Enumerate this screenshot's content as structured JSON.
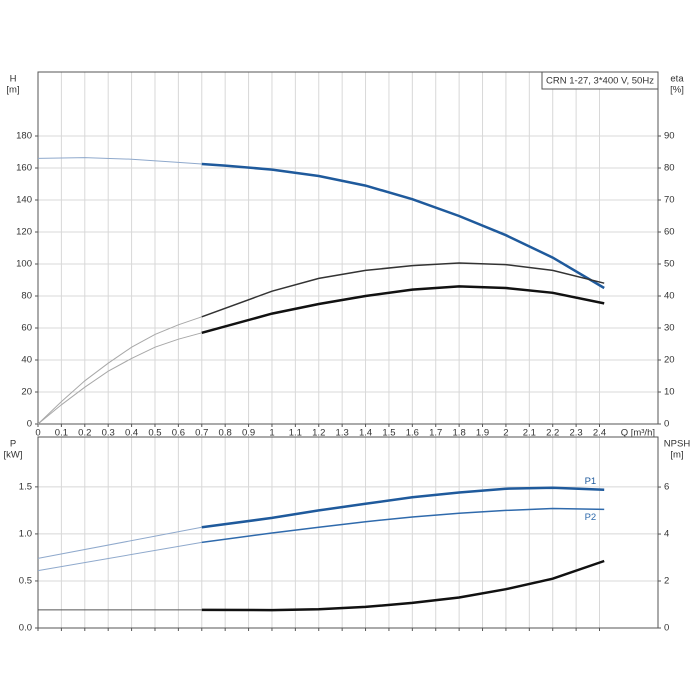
{
  "chart_data": [
    {
      "type": "line",
      "title": "CRN 1-27, 3*400 V, 50Hz",
      "ylabel": "H",
      "ylabel_unit": "[m]",
      "y2label": "eta",
      "y2label_unit": "[%]",
      "xlabel": "Q [m³/h]",
      "xlim": [
        0,
        2.65
      ],
      "xticks": [
        0,
        0.1,
        0.2,
        0.3,
        0.4,
        0.5,
        0.6,
        0.7,
        0.8,
        0.9,
        1.0,
        1.1,
        1.2,
        1.3,
        1.4,
        1.5,
        1.6,
        1.7,
        1.8,
        1.9,
        2.0,
        2.1,
        2.2,
        2.3,
        2.4
      ],
      "ylim": [
        0,
        220
      ],
      "yticks": [
        0,
        20,
        40,
        60,
        80,
        100,
        120,
        140,
        160,
        180
      ],
      "y2lim": [
        0,
        110
      ],
      "y2ticks": [
        0,
        10,
        20,
        30,
        40,
        50,
        60,
        70,
        80,
        90
      ],
      "grid": true,
      "series": [
        {
          "color": "#8fa9cc",
          "line_width": 1,
          "x": [
            0,
            0.2,
            0.4,
            0.6,
            0.7
          ],
          "values": [
            166,
            166.5,
            165.5,
            163.5,
            162.5
          ]
        },
        {
          "color": "#1f5a9c",
          "line_width": 2.5,
          "x": [
            0.7,
            0.8,
            1.0,
            1.2,
            1.4,
            1.6,
            1.8,
            2.0,
            2.2,
            2.42
          ],
          "values": [
            162.5,
            161.5,
            159,
            155,
            149,
            140.5,
            130,
            118,
            104,
            85
          ]
        },
        {
          "color": "#a8a8a8",
          "line_width": 1,
          "axis": "y2",
          "x": [
            0,
            0.1,
            0.2,
            0.3,
            0.4,
            0.5,
            0.6,
            0.7
          ],
          "values": [
            0,
            7,
            13.5,
            19,
            24,
            28,
            31,
            33.5
          ]
        },
        {
          "color": "#333333",
          "line_width": 1.5,
          "axis": "y2",
          "x": [
            0.7,
            1.0,
            1.2,
            1.4,
            1.6,
            1.8,
            2.0,
            2.2,
            2.42
          ],
          "values": [
            33.5,
            41.5,
            45.5,
            48,
            49.5,
            50.3,
            49.8,
            48,
            44
          ]
        },
        {
          "color": "#a8a8a8",
          "line_width": 1,
          "axis": "y2",
          "x": [
            0,
            0.1,
            0.2,
            0.3,
            0.4,
            0.5,
            0.6,
            0.7
          ],
          "values": [
            0,
            6,
            11.5,
            16.5,
            20.5,
            24,
            26.5,
            28.5
          ]
        },
        {
          "color": "#111111",
          "line_width": 2.5,
          "axis": "y2",
          "x": [
            0.7,
            1.0,
            1.2,
            1.4,
            1.6,
            1.8,
            2.0,
            2.2,
            2.42
          ],
          "values": [
            28.5,
            34.5,
            37.5,
            40,
            42,
            43,
            42.5,
            41,
            37.7
          ]
        }
      ]
    },
    {
      "type": "line",
      "ylabel": "P",
      "ylabel_unit": "[kW]",
      "y2label": "NPSH",
      "y2label_unit": "[m]",
      "xlim": [
        0,
        2.65
      ],
      "xticks": [
        0,
        0.1,
        0.2,
        0.3,
        0.4,
        0.5,
        0.6,
        0.7,
        0.8,
        0.9,
        1.0,
        1.1,
        1.2,
        1.3,
        1.4,
        1.5,
        1.6,
        1.7,
        1.8,
        1.9,
        2.0,
        2.1,
        2.2,
        2.3,
        2.4
      ],
      "xtick_labels": false,
      "ylim": [
        0,
        2.03
      ],
      "yticks": [
        {
          "value": 0,
          "label": "0.0"
        },
        0.5,
        {
          "value": 1,
          "label": "1.0"
        },
        1.5
      ],
      "y2lim": [
        0,
        8.13
      ],
      "y2ticks": [
        0,
        2,
        4,
        6
      ],
      "grid": true,
      "series": [
        {
          "color": "#8fa9cc",
          "line_width": 1,
          "x": [
            0,
            0.7
          ],
          "values": [
            0.74,
            1.07
          ]
        },
        {
          "name": "P1",
          "color": "#1f5a9c",
          "line_width": 2.5,
          "x": [
            0.7,
            1.0,
            1.2,
            1.4,
            1.6,
            1.8,
            2.0,
            2.2,
            2.42
          ],
          "values": [
            1.07,
            1.17,
            1.25,
            1.32,
            1.39,
            1.44,
            1.48,
            1.49,
            1.47
          ]
        },
        {
          "color": "#8fa9cc",
          "line_width": 1,
          "x": [
            0,
            0.7
          ],
          "values": [
            0.61,
            0.91
          ]
        },
        {
          "name": "P2",
          "color": "#2f6aac",
          "line_width": 1.5,
          "x": [
            0.7,
            1.0,
            1.2,
            1.4,
            1.6,
            1.8,
            2.0,
            2.2,
            2.42
          ],
          "values": [
            0.91,
            1.01,
            1.07,
            1.13,
            1.18,
            1.22,
            1.25,
            1.27,
            1.26
          ]
        },
        {
          "color": "#555555",
          "line_width": 1,
          "axis": "y2",
          "x": [
            0,
            0.7
          ],
          "values": [
            0.77,
            0.77
          ]
        },
        {
          "color": "#111111",
          "line_width": 2.5,
          "axis": "y2",
          "x": [
            0.7,
            1.0,
            1.2,
            1.4,
            1.6,
            1.8,
            2.0,
            2.2,
            2.42
          ],
          "values": [
            0.77,
            0.76,
            0.8,
            0.9,
            1.07,
            1.3,
            1.65,
            2.1,
            2.85
          ]
        }
      ]
    }
  ]
}
